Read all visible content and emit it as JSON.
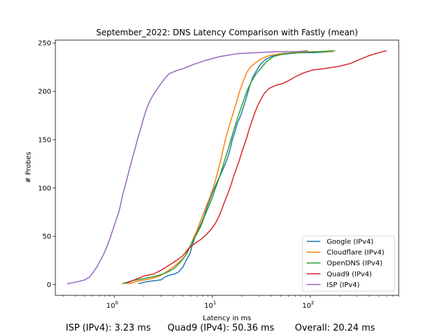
{
  "chart_data": {
    "type": "line",
    "title": "September_2022: DNS Latency Comparison with Fastly (mean)",
    "xlabel": "Latency in ms",
    "ylabel": "# Probes",
    "xscale": "log",
    "xlim": [
      0.25,
      800
    ],
    "ylim": [
      -11,
      253
    ],
    "x_ticks": [
      {
        "value": 1,
        "label": "10^0",
        "base": "10",
        "exp": "0"
      },
      {
        "value": 10,
        "label": "10^1",
        "base": "10",
        "exp": "1"
      },
      {
        "value": 100,
        "label": "10^2",
        "base": "10",
        "exp": "2"
      }
    ],
    "y_ticks": [
      0,
      50,
      100,
      150,
      200,
      250
    ],
    "grid": false,
    "legend_position": "lower right",
    "series": [
      {
        "name": "Google (IPv4)",
        "color": "#1f77b4",
        "points": [
          [
            1.75,
            1
          ],
          [
            2.1,
            3
          ],
          [
            2.5,
            4
          ],
          [
            3.0,
            5
          ],
          [
            3.3,
            8
          ],
          [
            3.7,
            10
          ],
          [
            4.1,
            11
          ],
          [
            4.5,
            13
          ],
          [
            5.0,
            18
          ],
          [
            5.4,
            25
          ],
          [
            5.9,
            32
          ],
          [
            6.2,
            40
          ],
          [
            6.6,
            48
          ],
          [
            7.0,
            55
          ],
          [
            7.6,
            62
          ],
          [
            8.2,
            70
          ],
          [
            8.8,
            80
          ],
          [
            9.6,
            90
          ],
          [
            10.5,
            100
          ],
          [
            11.4,
            108
          ],
          [
            12.3,
            115
          ],
          [
            13.2,
            122
          ],
          [
            14.2,
            130
          ],
          [
            15.2,
            140
          ],
          [
            16.0,
            150
          ],
          [
            17.0,
            158
          ],
          [
            18.0,
            167
          ],
          [
            19.5,
            175
          ],
          [
            21.0,
            185
          ],
          [
            22.5,
            195
          ],
          [
            24.0,
            205
          ],
          [
            26.0,
            215
          ],
          [
            28.5,
            222
          ],
          [
            31.0,
            228
          ],
          [
            35.0,
            233
          ],
          [
            40.0,
            236
          ],
          [
            48.0,
            238
          ],
          [
            60.0,
            239
          ],
          [
            80.0,
            240
          ],
          [
            110.0,
            240
          ],
          [
            160.0,
            241
          ]
        ]
      },
      {
        "name": "Cloudflare (IPv4)",
        "color": "#ff7f0e",
        "points": [
          [
            1.4,
            1
          ],
          [
            1.8,
            4
          ],
          [
            2.3,
            6
          ],
          [
            2.9,
            9
          ],
          [
            3.5,
            14
          ],
          [
            4.2,
            20
          ],
          [
            4.9,
            26
          ],
          [
            5.5,
            32
          ],
          [
            6.0,
            40
          ],
          [
            6.4,
            48
          ],
          [
            6.9,
            55
          ],
          [
            7.4,
            63
          ],
          [
            8.0,
            72
          ],
          [
            8.6,
            80
          ],
          [
            9.4,
            90
          ],
          [
            10.2,
            100
          ],
          [
            10.9,
            110
          ],
          [
            11.6,
            120
          ],
          [
            12.3,
            130
          ],
          [
            12.9,
            140
          ],
          [
            13.6,
            150
          ],
          [
            14.5,
            160
          ],
          [
            15.5,
            170
          ],
          [
            16.6,
            180
          ],
          [
            17.8,
            190
          ],
          [
            19.0,
            200
          ],
          [
            20.6,
            210
          ],
          [
            22.6,
            220
          ],
          [
            25.0,
            226
          ],
          [
            28.0,
            230
          ],
          [
            32.0,
            234
          ],
          [
            38.0,
            237
          ],
          [
            50.0,
            239
          ],
          [
            70.0,
            240
          ],
          [
            100.0,
            241
          ],
          [
            170.0,
            241
          ]
        ]
      },
      {
        "name": "OpenDNS (IPv4)",
        "color": "#2ca02c",
        "points": [
          [
            1.2,
            1
          ],
          [
            1.5,
            4
          ],
          [
            1.9,
            6
          ],
          [
            2.4,
            8
          ],
          [
            2.9,
            10
          ],
          [
            3.5,
            13
          ],
          [
            4.1,
            17
          ],
          [
            4.7,
            23
          ],
          [
            5.3,
            30
          ],
          [
            5.8,
            38
          ],
          [
            6.3,
            45
          ],
          [
            6.9,
            52
          ],
          [
            7.6,
            60
          ],
          [
            8.3,
            70
          ],
          [
            9.1,
            80
          ],
          [
            10.0,
            90
          ],
          [
            10.8,
            100
          ],
          [
            11.7,
            110
          ],
          [
            12.6,
            120
          ],
          [
            13.5,
            130
          ],
          [
            14.5,
            140
          ],
          [
            15.5,
            150
          ],
          [
            16.6,
            160
          ],
          [
            17.8,
            170
          ],
          [
            19.2,
            180
          ],
          [
            20.8,
            190
          ],
          [
            22.5,
            200
          ],
          [
            25.0,
            210
          ],
          [
            28.0,
            218
          ],
          [
            32.0,
            225
          ],
          [
            36.0,
            231
          ],
          [
            42.0,
            236
          ],
          [
            55.0,
            239
          ],
          [
            80.0,
            240
          ],
          [
            120.0,
            241
          ],
          [
            180.0,
            242
          ]
        ]
      },
      {
        "name": "Quad9 (IPv4)",
        "color": "#d62728",
        "points": [
          [
            1.3,
            1
          ],
          [
            1.6,
            5
          ],
          [
            2.0,
            9
          ],
          [
            2.5,
            11
          ],
          [
            3.0,
            15
          ],
          [
            3.6,
            20
          ],
          [
            4.3,
            25
          ],
          [
            5.0,
            30
          ],
          [
            5.8,
            38
          ],
          [
            6.7,
            43
          ],
          [
            7.7,
            47
          ],
          [
            8.7,
            52
          ],
          [
            9.7,
            57
          ],
          [
            10.7,
            63
          ],
          [
            11.6,
            70
          ],
          [
            12.5,
            78
          ],
          [
            13.5,
            87
          ],
          [
            14.5,
            95
          ],
          [
            15.5,
            103
          ],
          [
            16.5,
            112
          ],
          [
            17.6,
            120
          ],
          [
            18.8,
            128
          ],
          [
            20.0,
            137
          ],
          [
            21.3,
            145
          ],
          [
            22.6,
            153
          ],
          [
            24.0,
            162
          ],
          [
            25.5,
            170
          ],
          [
            27.2,
            178
          ],
          [
            29.0,
            185
          ],
          [
            31.5,
            192
          ],
          [
            34.0,
            198
          ],
          [
            38.0,
            203
          ],
          [
            44.0,
            206
          ],
          [
            52.0,
            208
          ],
          [
            60.0,
            211
          ],
          [
            70.0,
            215
          ],
          [
            85.0,
            219
          ],
          [
            105.0,
            222
          ],
          [
            150.0,
            224
          ],
          [
            200.0,
            226
          ],
          [
            260.0,
            229
          ],
          [
            320.0,
            233
          ],
          [
            400.0,
            237
          ],
          [
            500.0,
            240
          ],
          [
            600.0,
            242
          ]
        ]
      },
      {
        "name": "ISP (IPv4)",
        "color": "#9467bd",
        "points": [
          [
            0.33,
            1
          ],
          [
            0.42,
            3
          ],
          [
            0.5,
            5
          ],
          [
            0.56,
            8
          ],
          [
            0.6,
            12
          ],
          [
            0.66,
            18
          ],
          [
            0.72,
            25
          ],
          [
            0.78,
            32
          ],
          [
            0.83,
            38
          ],
          [
            0.88,
            45
          ],
          [
            0.93,
            52
          ],
          [
            0.99,
            60
          ],
          [
            1.05,
            68
          ],
          [
            1.11,
            75
          ],
          [
            1.16,
            83
          ],
          [
            1.21,
            92
          ],
          [
            1.27,
            100
          ],
          [
            1.35,
            110
          ],
          [
            1.43,
            120
          ],
          [
            1.52,
            130
          ],
          [
            1.62,
            140
          ],
          [
            1.72,
            150
          ],
          [
            1.84,
            160
          ],
          [
            1.96,
            170
          ],
          [
            2.1,
            180
          ],
          [
            2.3,
            190
          ],
          [
            2.55,
            198
          ],
          [
            2.85,
            205
          ],
          [
            3.2,
            212
          ],
          [
            3.6,
            218
          ],
          [
            4.2,
            221
          ],
          [
            5.2,
            224
          ],
          [
            6.5,
            228
          ],
          [
            8.5,
            232
          ],
          [
            12.0,
            236
          ],
          [
            18.0,
            239
          ],
          [
            28.0,
            240
          ],
          [
            45.0,
            241
          ],
          [
            70.0,
            241
          ],
          [
            95.0,
            242
          ]
        ]
      }
    ]
  },
  "footer": {
    "isp_text": "ISP (IPv4): 3.23 ms",
    "quad9_text": "Quad9 (IPv4): 50.36 ms",
    "overall_text": "Overall: 20.24 ms"
  }
}
